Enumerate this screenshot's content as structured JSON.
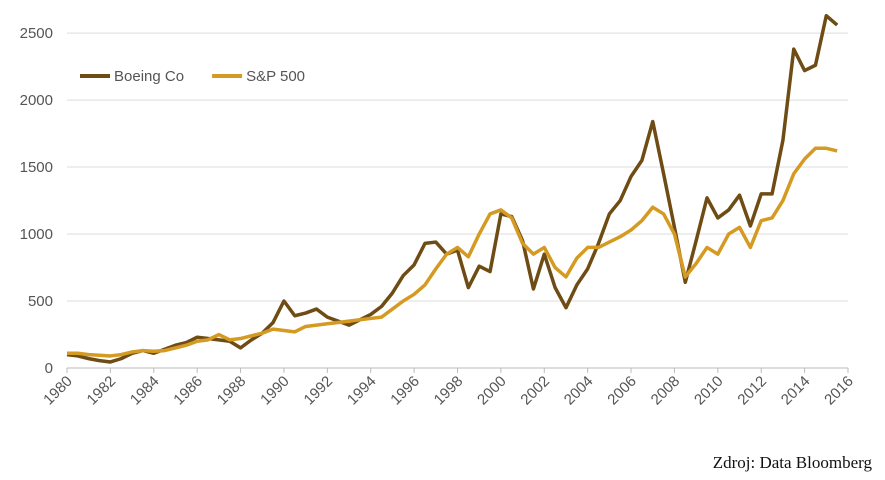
{
  "chart_data": {
    "type": "line",
    "x": [
      1980,
      1980.5,
      1981,
      1981.5,
      1982,
      1982.5,
      1983,
      1983.5,
      1984,
      1984.5,
      1985,
      1985.5,
      1986,
      1986.5,
      1987,
      1987.5,
      1988,
      1988.5,
      1989,
      1989.5,
      1990,
      1990.5,
      1991,
      1991.5,
      1992,
      1992.5,
      1993,
      1993.5,
      1994,
      1994.5,
      1995,
      1995.5,
      1996,
      1996.5,
      1997,
      1997.5,
      1998,
      1998.5,
      1999,
      1999.5,
      2000,
      2000.5,
      2001,
      2001.5,
      2002,
      2002.5,
      2003,
      2003.5,
      2004,
      2004.5,
      2005,
      2005.5,
      2006,
      2006.5,
      2007,
      2007.5,
      2008,
      2008.5,
      2009,
      2009.5,
      2010,
      2010.5,
      2011,
      2011.5,
      2012,
      2012.5,
      2013,
      2013.5,
      2014,
      2014.5,
      2015,
      2015.5
    ],
    "series": [
      {
        "name": "Boeing Co",
        "color": "#6e4c14",
        "values": [
          100,
          90,
          70,
          55,
          45,
          70,
          110,
          130,
          110,
          140,
          170,
          190,
          230,
          220,
          210,
          200,
          150,
          210,
          260,
          340,
          500,
          390,
          410,
          440,
          380,
          350,
          320,
          360,
          400,
          460,
          560,
          690,
          770,
          930,
          940,
          850,
          880,
          600,
          760,
          720,
          1150,
          1130,
          950,
          590,
          850,
          600,
          450,
          620,
          740,
          930,
          1150,
          1250,
          1430,
          1550,
          1840,
          1450,
          1050,
          640,
          950,
          1270,
          1120,
          1180,
          1290,
          1060,
          1300,
          1300,
          1700,
          2380,
          2220,
          2260,
          2630,
          2560
        ]
      },
      {
        "name": "S&P 500",
        "color": "#d59a21",
        "values": [
          110,
          110,
          100,
          95,
          90,
          100,
          120,
          130,
          125,
          130,
          150,
          170,
          200,
          210,
          250,
          210,
          220,
          240,
          260,
          290,
          280,
          270,
          310,
          320,
          330,
          340,
          350,
          360,
          370,
          380,
          440,
          500,
          550,
          620,
          740,
          850,
          900,
          830,
          1000,
          1150,
          1180,
          1120,
          930,
          850,
          900,
          750,
          680,
          820,
          900,
          900,
          940,
          980,
          1030,
          1100,
          1200,
          1150,
          1000,
          680,
          780,
          900,
          850,
          1000,
          1050,
          900,
          1100,
          1120,
          1250,
          1450,
          1560,
          1640,
          1640,
          1620
        ]
      }
    ],
    "xlim": [
      1980,
      2016
    ],
    "xticks": [
      1980,
      1982,
      1984,
      1986,
      1988,
      1990,
      1992,
      1994,
      1996,
      1998,
      2000,
      2002,
      2004,
      2006,
      2008,
      2010,
      2012,
      2014,
      2016
    ],
    "ylim": [
      0,
      2650
    ],
    "yticks": [
      0,
      500,
      1000,
      1500,
      2000,
      2500
    ],
    "grid": true,
    "legend": "top-left",
    "source": "Zdroj: Data Bloomberg"
  }
}
